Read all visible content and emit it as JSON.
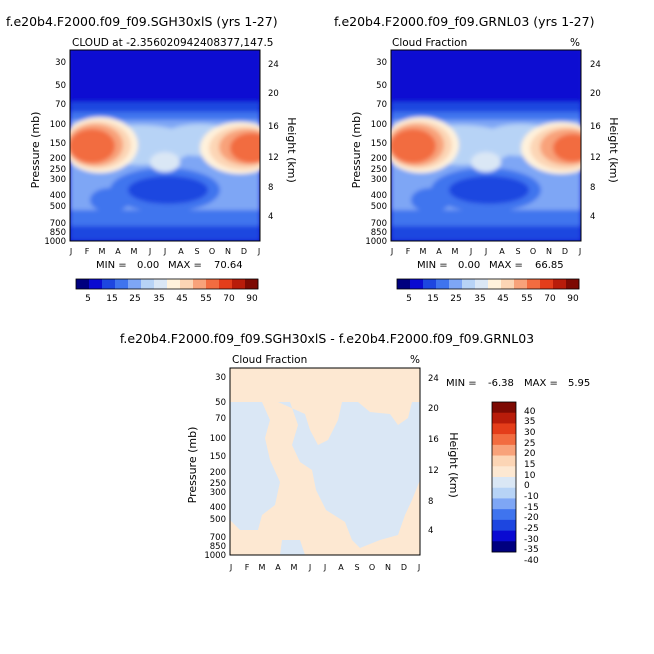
{
  "colors": {
    "cloud_scale": [
      "#00007f",
      "#0a0ad2",
      "#1d46e0",
      "#3f74ee",
      "#7ea6f5",
      "#b7d3f6",
      "#dae7f5",
      "#fff2dc",
      "#fcd5b5",
      "#f8a27a",
      "#f26c40",
      "#e43d1a",
      "#b81c0a",
      "#7d0a03"
    ],
    "diff_scale": [
      "#00007f",
      "#0a0ad2",
      "#1d46e0",
      "#3f74ee",
      "#7ea6f5",
      "#b7d3f6",
      "#dae7f5",
      "#fde8d2",
      "#fcd5b5",
      "#f8a27a",
      "#f26c40",
      "#e43d1a",
      "#b81c0a",
      "#7d0a03"
    ]
  },
  "chart_data": [
    {
      "id": "panel-1",
      "type": "heatmap",
      "title": "f.e20b4.F2000.f09_f09.SGH30xlS (yrs 1-27)",
      "subtitle_left": "CLOUD at -2.356020942408377,147.5",
      "subtitle_right": "",
      "xlabel": "",
      "ylabel": "Pressure (mb)",
      "ylabel_right": "Height (km)",
      "x_ticks": [
        "J",
        "F",
        "M",
        "A",
        "M",
        "J",
        "J",
        "A",
        "S",
        "O",
        "N",
        "D",
        "J"
      ],
      "y_ticks_pressure": [
        "30",
        "50",
        "70",
        "100",
        "150",
        "200",
        "250",
        "300",
        "400",
        "500",
        "700",
        "850",
        "1000"
      ],
      "y_ticks_height": [
        "24",
        "20",
        "16",
        "12",
        "8",
        "4"
      ],
      "min_label": "MIN =",
      "min": "0.00",
      "max_label": "MAX =",
      "max": "70.64",
      "colorbar_labels": [
        "5",
        "15",
        "25",
        "35",
        "45",
        "55",
        "70",
        "90"
      ],
      "colorbar_levels": [
        5,
        10,
        15,
        20,
        25,
        30,
        35,
        40,
        45,
        50,
        55,
        60,
        70,
        80,
        90
      ]
    },
    {
      "id": "panel-2",
      "type": "heatmap",
      "title": "f.e20b4.F2000.f09_f09.GRNL03 (yrs 1-27)",
      "subtitle_left": "Cloud Fraction",
      "subtitle_right": "%",
      "xlabel": "",
      "ylabel": "Pressure (mb)",
      "ylabel_right": "Height (km)",
      "x_ticks": [
        "J",
        "F",
        "M",
        "A",
        "M",
        "J",
        "J",
        "A",
        "S",
        "O",
        "N",
        "D",
        "J"
      ],
      "y_ticks_pressure": [
        "30",
        "50",
        "70",
        "100",
        "150",
        "200",
        "250",
        "300",
        "400",
        "500",
        "700",
        "850",
        "1000"
      ],
      "y_ticks_height": [
        "24",
        "20",
        "16",
        "12",
        "8",
        "4"
      ],
      "min_label": "MIN =",
      "min": "0.00",
      "max_label": "MAX =",
      "max": "66.85",
      "colorbar_labels": [
        "5",
        "15",
        "25",
        "35",
        "45",
        "55",
        "70",
        "90"
      ],
      "colorbar_levels": [
        5,
        10,
        15,
        20,
        25,
        30,
        35,
        40,
        45,
        50,
        55,
        60,
        70,
        80,
        90
      ]
    },
    {
      "id": "panel-3",
      "type": "heatmap",
      "title": "f.e20b4.F2000.f09_f09.SGH30xlS - f.e20b4.F2000.f09_f09.GRNL03",
      "subtitle_left": "Cloud Fraction",
      "subtitle_right": "%",
      "xlabel": "",
      "ylabel": "Pressure (mb)",
      "ylabel_right": "Height (km)",
      "x_ticks": [
        "J",
        "F",
        "M",
        "A",
        "M",
        "J",
        "J",
        "A",
        "S",
        "O",
        "N",
        "D",
        "J"
      ],
      "y_ticks_pressure": [
        "30",
        "50",
        "70",
        "100",
        "150",
        "200",
        "250",
        "300",
        "400",
        "500",
        "700",
        "850",
        "1000"
      ],
      "y_ticks_height": [
        "24",
        "20",
        "16",
        "12",
        "8",
        "4"
      ],
      "min_label": "MIN =",
      "min": "-6.38",
      "max_label": "MAX =",
      "max": "5.95",
      "colorbar_labels": [
        "40",
        "35",
        "30",
        "25",
        "20",
        "15",
        "10",
        "0",
        "-10",
        "-15",
        "-20",
        "-25",
        "-30",
        "-35",
        "-40"
      ],
      "colorbar_levels": [
        -40,
        -35,
        -30,
        -25,
        -20,
        -15,
        -10,
        0,
        10,
        15,
        20,
        25,
        30,
        35,
        40
      ]
    }
  ]
}
